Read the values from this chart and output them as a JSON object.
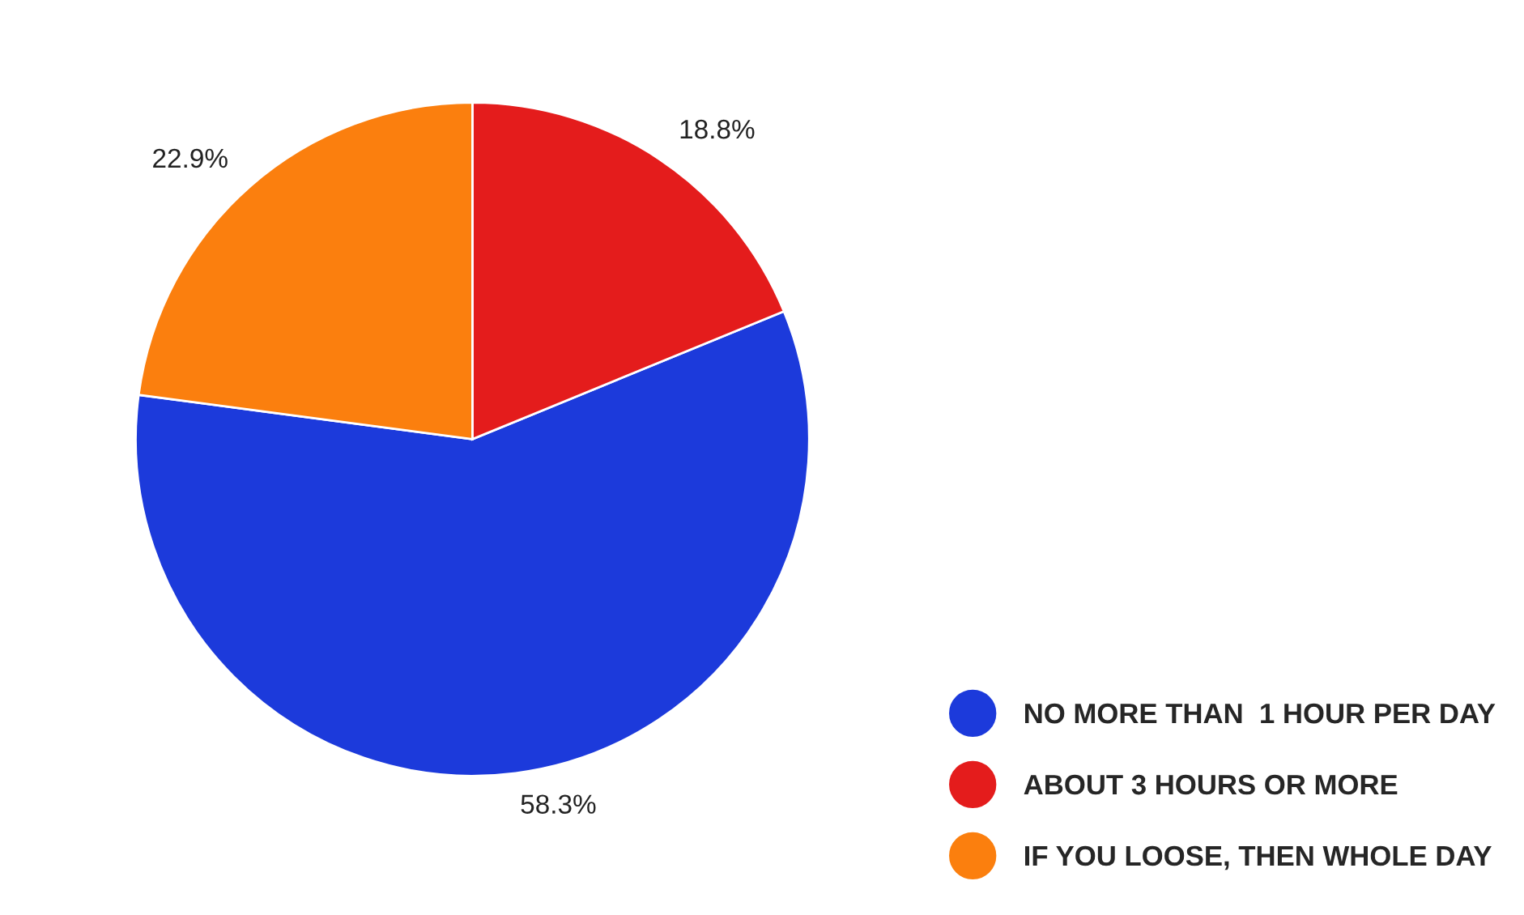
{
  "chart_data": {
    "type": "pie",
    "categories": [
      "NO MORE THAN  1 HOUR PER DAY",
      "ABOUT 3 HOURS OR MORE",
      "IF YOU LOOSE, THEN WHOLE DAY"
    ],
    "values": [
      58.3,
      18.8,
      22.9
    ],
    "colors": [
      "#1c3adb",
      "#e41c1c",
      "#fb7f0e"
    ],
    "value_labels": [
      "58.3%",
      "18.8%",
      "22.9%"
    ],
    "legend": "bottom right"
  }
}
